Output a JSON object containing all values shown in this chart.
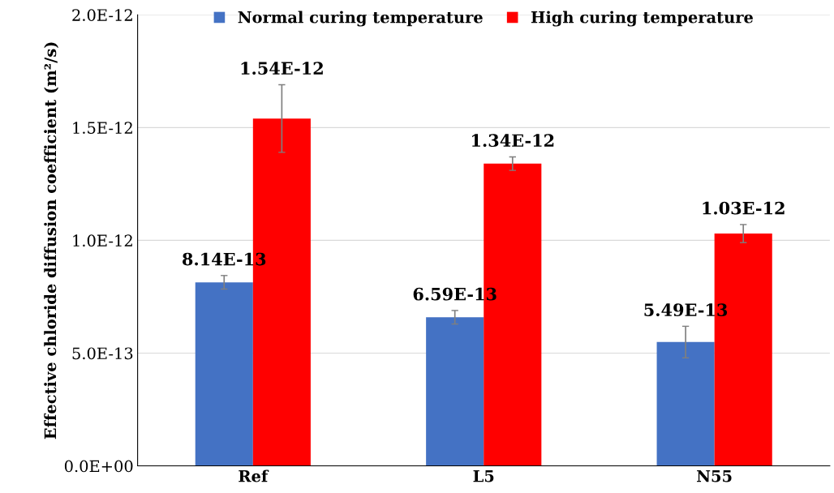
{
  "chart_data": {
    "type": "bar",
    "ylabel": "Effective chloride diffusion coefficient (m²/s)",
    "categories": [
      "Ref",
      "L5",
      "N55"
    ],
    "series": [
      {
        "name": "Normal curing temperature",
        "color": "#4472c4",
        "values": [
          8.14e-13,
          6.59e-13,
          5.49e-13
        ],
        "errors": [
          3e-14,
          3e-14,
          7e-14
        ],
        "value_labels": [
          "8.14E-13",
          "6.59E-13",
          "5.49E-13"
        ]
      },
      {
        "name": "High curing temperature",
        "color": "#ff0000",
        "values": [
          1.54e-12,
          1.34e-12,
          1.03e-12
        ],
        "errors": [
          1.5e-13,
          3e-14,
          4e-14
        ],
        "value_labels": [
          "1.54E-12",
          "1.34E-12",
          "1.03E-12"
        ]
      }
    ],
    "ylim": [
      0,
      2e-12
    ],
    "yticks": [
      {
        "value": 0,
        "label": "0.0E+00"
      },
      {
        "value": 5e-13,
        "label": "5.0E-13"
      },
      {
        "value": 1e-12,
        "label": "1.0E-12"
      },
      {
        "value": 1.5e-12,
        "label": "1.5E-12"
      },
      {
        "value": 2e-12,
        "label": "2.0E-12"
      }
    ],
    "grid": "y",
    "legend": "top"
  }
}
